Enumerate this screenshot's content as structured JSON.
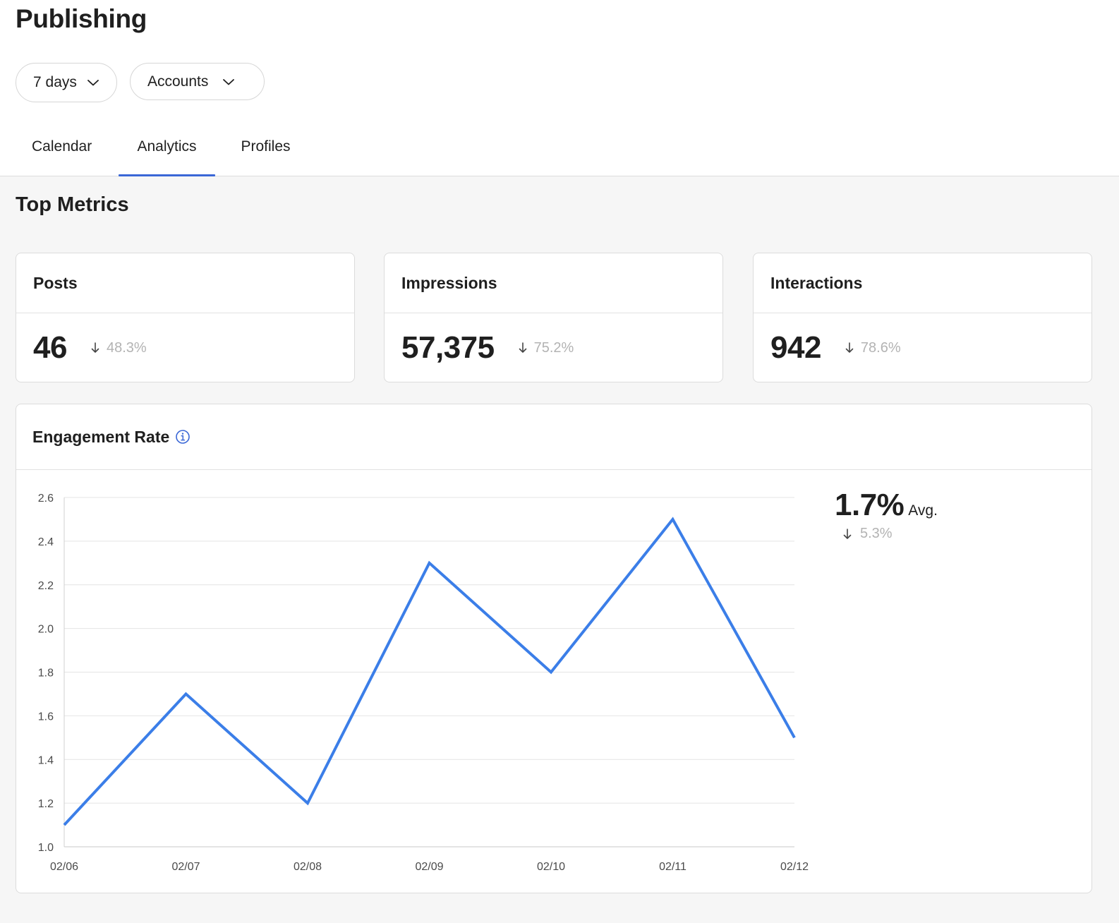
{
  "header": {
    "title": "Publishing"
  },
  "filters": [
    {
      "label": "7 days"
    },
    {
      "label": "Accounts"
    }
  ],
  "tabs": [
    {
      "label": "Calendar",
      "active": false
    },
    {
      "label": "Analytics",
      "active": true
    },
    {
      "label": "Profiles",
      "active": false
    }
  ],
  "section": {
    "title": "Top Metrics"
  },
  "metrics": [
    {
      "label": "Posts",
      "value": "46",
      "delta": "48.3%",
      "direction": "down"
    },
    {
      "label": "Impressions",
      "value": "57,375",
      "delta": "75.2%",
      "direction": "down"
    },
    {
      "label": "Interactions",
      "value": "942",
      "delta": "78.6%",
      "direction": "down"
    }
  ],
  "engagement": {
    "title": "Engagement Rate",
    "avg_value": "1.7%",
    "avg_label": "Avg.",
    "avg_delta": "5.3%",
    "avg_direction": "down"
  },
  "colors": {
    "accent": "#3a67d6",
    "line": "#3b7ee8"
  },
  "chart_data": {
    "type": "line",
    "x": [
      "02/06",
      "02/07",
      "02/08",
      "02/09",
      "02/10",
      "02/11",
      "02/12"
    ],
    "series": [
      {
        "values": [
          1.1,
          1.7,
          1.2,
          2.3,
          1.8,
          2.5,
          1.5
        ]
      }
    ],
    "yticks": [
      "1.0",
      "1.2",
      "1.4",
      "1.6",
      "1.8",
      "2.0",
      "2.2",
      "2.4",
      "2.6"
    ],
    "ylim": [
      1.0,
      2.6
    ],
    "grid": true,
    "legend": "none"
  }
}
